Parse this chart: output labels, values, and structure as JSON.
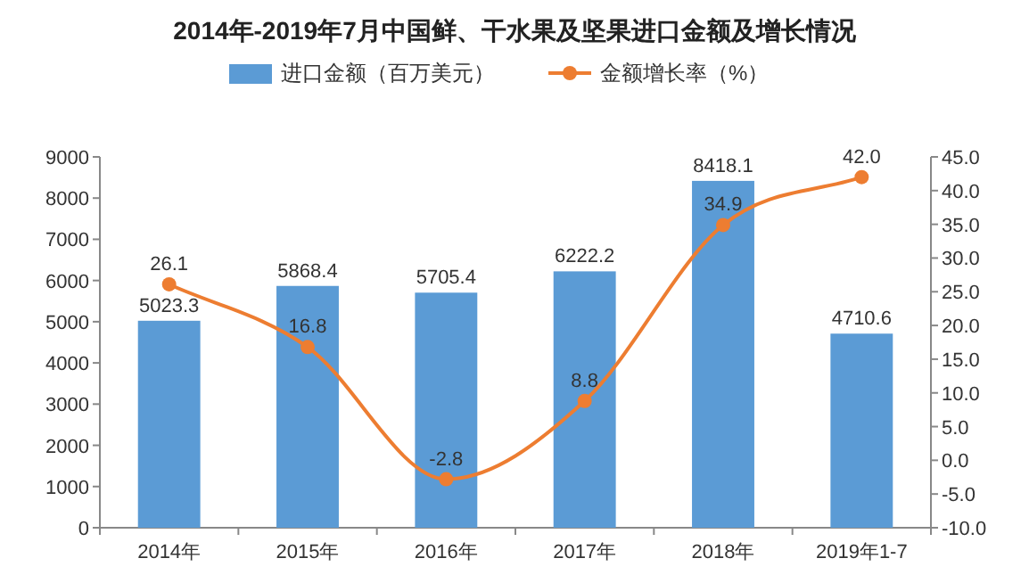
{
  "chart_data": {
    "type": "bar",
    "title": "2014年-2019年7月中国鲜、干水果及坚果进口金额及增长情况",
    "categories": [
      "2014年",
      "2015年",
      "2016年",
      "2017年",
      "2018年",
      "2019年1-7"
    ],
    "series": [
      {
        "name": "进口金额（百万美元）",
        "color": "#5b9bd5",
        "values": [
          5023.3,
          5868.4,
          5705.4,
          6222.2,
          8418.1,
          4710.6
        ]
      },
      {
        "name": "金额增长率（%）",
        "type": "line",
        "axis": "y2",
        "color": "#ed7d31",
        "marker": "circle",
        "values": [
          26.1,
          16.8,
          -2.8,
          8.8,
          34.9,
          42.0
        ],
        "value_labels": [
          "26.1",
          "16.8",
          "-2.8",
          "8.8",
          "34.9",
          "42.0"
        ]
      }
    ],
    "ylim": [
      0,
      9000
    ],
    "yticks": [
      0,
      1000,
      2000,
      3000,
      4000,
      5000,
      6000,
      7000,
      8000,
      9000
    ],
    "y2lim": [
      -10,
      45
    ],
    "y2ticks": [
      {
        "value": -10,
        "label": "-10.0"
      },
      {
        "value": -5,
        "label": "-5.0"
      },
      {
        "value": 0,
        "label": "0.0"
      },
      {
        "value": 5,
        "label": "5.0"
      },
      {
        "value": 10,
        "label": "10.0"
      },
      {
        "value": 15,
        "label": "15.0"
      },
      {
        "value": 20,
        "label": "20.0"
      },
      {
        "value": 25,
        "label": "25.0"
      },
      {
        "value": 30,
        "label": "30.0"
      },
      {
        "value": 35,
        "label": "35.0"
      },
      {
        "value": 40,
        "label": "40.0"
      },
      {
        "value": 45,
        "label": "45.0"
      }
    ],
    "data_labels": true,
    "legend": "top",
    "grid": false
  }
}
